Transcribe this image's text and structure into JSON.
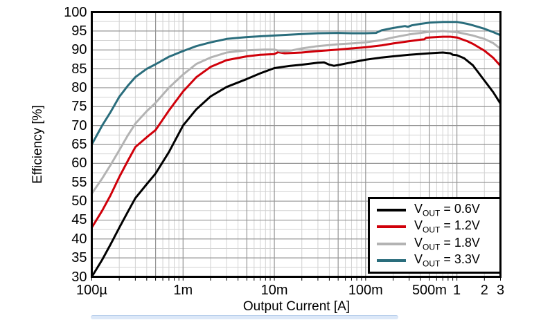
{
  "figure": {
    "background": "#ffffff",
    "bottom_bar_color": "#dce8f8",
    "bottom_bar_edge": "#b9cfec"
  },
  "chart_data": {
    "type": "line",
    "title": "",
    "xlabel": "Output Current [A]",
    "ylabel": "Efficiency [%]",
    "x_scale": "log",
    "xlim": [
      0.0001,
      3
    ],
    "ylim": [
      30,
      100
    ],
    "grid": {
      "major_color": "#949494",
      "minor_color": "#d2d2d2",
      "border_color": "#000000"
    },
    "y_ticks": [
      100,
      95,
      90,
      85,
      80,
      75,
      70,
      65,
      60,
      55,
      50,
      45,
      40,
      35,
      30
    ],
    "y_minor_step": 2.5,
    "x_ticks": [
      {
        "value": 0.0001,
        "label": "100µ"
      },
      {
        "value": 0.001,
        "label": "1m"
      },
      {
        "value": 0.01,
        "label": "10m"
      },
      {
        "value": 0.1,
        "label": "100m"
      },
      {
        "value": 0.5,
        "label": "500m"
      },
      {
        "value": 1,
        "label": "1"
      },
      {
        "value": 2,
        "label": "2"
      },
      {
        "value": 3,
        "label": "3"
      }
    ],
    "legend_position": "bottom-right",
    "series": [
      {
        "name": "VOUT = 0.6V",
        "legend_prefix": "V",
        "legend_sub": "OUT",
        "legend_suffix": " = 0.6V",
        "color": "#000000",
        "points": [
          [
            0.0001,
            30
          ],
          [
            0.00013,
            34.5
          ],
          [
            0.00016,
            38.5
          ],
          [
            0.0002,
            43
          ],
          [
            0.00025,
            47.3
          ],
          [
            0.0003,
            50.8
          ],
          [
            0.0004,
            54.5
          ],
          [
            0.0005,
            57.3
          ],
          [
            0.0007,
            63
          ],
          [
            0.001,
            70
          ],
          [
            0.0014,
            74.3
          ],
          [
            0.002,
            77.7
          ],
          [
            0.003,
            80.2
          ],
          [
            0.005,
            82.3
          ],
          [
            0.007,
            83.8
          ],
          [
            0.01,
            85.2
          ],
          [
            0.015,
            85.8
          ],
          [
            0.02,
            86.1
          ],
          [
            0.03,
            86.6
          ],
          [
            0.035,
            86.7
          ],
          [
            0.04,
            86.1
          ],
          [
            0.045,
            85.8
          ],
          [
            0.05,
            86
          ],
          [
            0.07,
            86.7
          ],
          [
            0.1,
            87.4
          ],
          [
            0.15,
            88
          ],
          [
            0.2,
            88.3
          ],
          [
            0.3,
            88.7
          ],
          [
            0.5,
            89.1
          ],
          [
            0.7,
            89.3
          ],
          [
            0.85,
            89.1
          ],
          [
            0.9,
            88.7
          ],
          [
            1,
            88.6
          ],
          [
            1.2,
            87.8
          ],
          [
            1.5,
            85.9
          ],
          [
            2,
            81.9
          ],
          [
            2.5,
            78.8
          ],
          [
            3,
            75.8
          ]
        ]
      },
      {
        "name": "VOUT = 1.2V",
        "legend_prefix": "V",
        "legend_sub": "OUT",
        "legend_suffix": " = 1.2V",
        "color": "#d0000a",
        "points": [
          [
            0.0001,
            43
          ],
          [
            0.00013,
            47.5
          ],
          [
            0.00016,
            51.5
          ],
          [
            0.0002,
            56.4
          ],
          [
            0.00025,
            60.8
          ],
          [
            0.0003,
            64.3
          ],
          [
            0.0004,
            66.9
          ],
          [
            0.0005,
            68.8
          ],
          [
            0.0007,
            74
          ],
          [
            0.001,
            79
          ],
          [
            0.0014,
            82.8
          ],
          [
            0.002,
            85.5
          ],
          [
            0.003,
            87.3
          ],
          [
            0.005,
            88.3
          ],
          [
            0.007,
            88.7
          ],
          [
            0.01,
            88.9
          ],
          [
            0.011,
            89.4
          ],
          [
            0.013,
            89.1
          ],
          [
            0.02,
            89.3
          ],
          [
            0.03,
            89.7
          ],
          [
            0.05,
            90.1
          ],
          [
            0.07,
            90.4
          ],
          [
            0.1,
            90.7
          ],
          [
            0.15,
            91.2
          ],
          [
            0.2,
            91.7
          ],
          [
            0.3,
            92.3
          ],
          [
            0.4,
            92.7
          ],
          [
            0.44,
            92.8
          ],
          [
            0.46,
            93.2
          ],
          [
            0.5,
            93.3
          ],
          [
            0.7,
            93.5
          ],
          [
            0.85,
            93.5
          ],
          [
            1,
            93.3
          ],
          [
            1.3,
            92.3
          ],
          [
            1.5,
            91.6
          ],
          [
            2,
            89.8
          ],
          [
            2.5,
            87.9
          ],
          [
            3,
            85.8
          ]
        ]
      },
      {
        "name": "VOUT = 1.8V",
        "legend_prefix": "V",
        "legend_sub": "OUT",
        "legend_suffix": " = 1.8V",
        "color": "#b3b3b3",
        "points": [
          [
            0.0001,
            52
          ],
          [
            0.00013,
            56
          ],
          [
            0.00016,
            59.5
          ],
          [
            0.0002,
            63.5
          ],
          [
            0.00025,
            67.5
          ],
          [
            0.0003,
            70.5
          ],
          [
            0.0004,
            73.8
          ],
          [
            0.0005,
            76
          ],
          [
            0.0007,
            80
          ],
          [
            0.001,
            83.5
          ],
          [
            0.0014,
            86.3
          ],
          [
            0.002,
            88
          ],
          [
            0.003,
            89.3
          ],
          [
            0.005,
            89.9
          ],
          [
            0.008,
            90.1
          ],
          [
            0.01,
            90.1
          ],
          [
            0.012,
            89.6
          ],
          [
            0.015,
            89.8
          ],
          [
            0.02,
            90.4
          ],
          [
            0.03,
            91
          ],
          [
            0.05,
            91.5
          ],
          [
            0.07,
            91.7
          ],
          [
            0.1,
            92
          ],
          [
            0.15,
            92.6
          ],
          [
            0.2,
            93.3
          ],
          [
            0.3,
            94.1
          ],
          [
            0.5,
            94.8
          ],
          [
            0.7,
            95
          ],
          [
            1,
            94.7
          ],
          [
            1.5,
            93.8
          ],
          [
            2,
            92.9
          ],
          [
            2.5,
            91.8
          ],
          [
            3,
            90.3
          ]
        ]
      },
      {
        "name": "VOUT = 3.3V",
        "legend_prefix": "V",
        "legend_sub": "OUT",
        "legend_suffix": " = 3.3V",
        "color": "#2a6d7c",
        "points": [
          [
            0.0001,
            65
          ],
          [
            0.00013,
            70
          ],
          [
            0.00016,
            73.5
          ],
          [
            0.0002,
            77.6
          ],
          [
            0.00025,
            80.6
          ],
          [
            0.0003,
            82.8
          ],
          [
            0.0004,
            85
          ],
          [
            0.0005,
            86.2
          ],
          [
            0.0007,
            88.2
          ],
          [
            0.001,
            89.7
          ],
          [
            0.0014,
            91
          ],
          [
            0.002,
            92
          ],
          [
            0.003,
            92.9
          ],
          [
            0.005,
            93.4
          ],
          [
            0.01,
            93.8
          ],
          [
            0.02,
            94.2
          ],
          [
            0.03,
            94.4
          ],
          [
            0.05,
            94.5
          ],
          [
            0.07,
            94.4
          ],
          [
            0.1,
            94.4
          ],
          [
            0.13,
            94.5
          ],
          [
            0.15,
            95.2
          ],
          [
            0.2,
            95.8
          ],
          [
            0.27,
            96.3
          ],
          [
            0.29,
            96.1
          ],
          [
            0.32,
            96.5
          ],
          [
            0.4,
            96.9
          ],
          [
            0.5,
            97.2
          ],
          [
            0.7,
            97.4
          ],
          [
            1,
            97.4
          ],
          [
            1.3,
            96.9
          ],
          [
            1.5,
            96.5
          ],
          [
            2,
            95.6
          ],
          [
            2.5,
            94.7
          ],
          [
            3,
            93.9
          ]
        ]
      }
    ]
  }
}
